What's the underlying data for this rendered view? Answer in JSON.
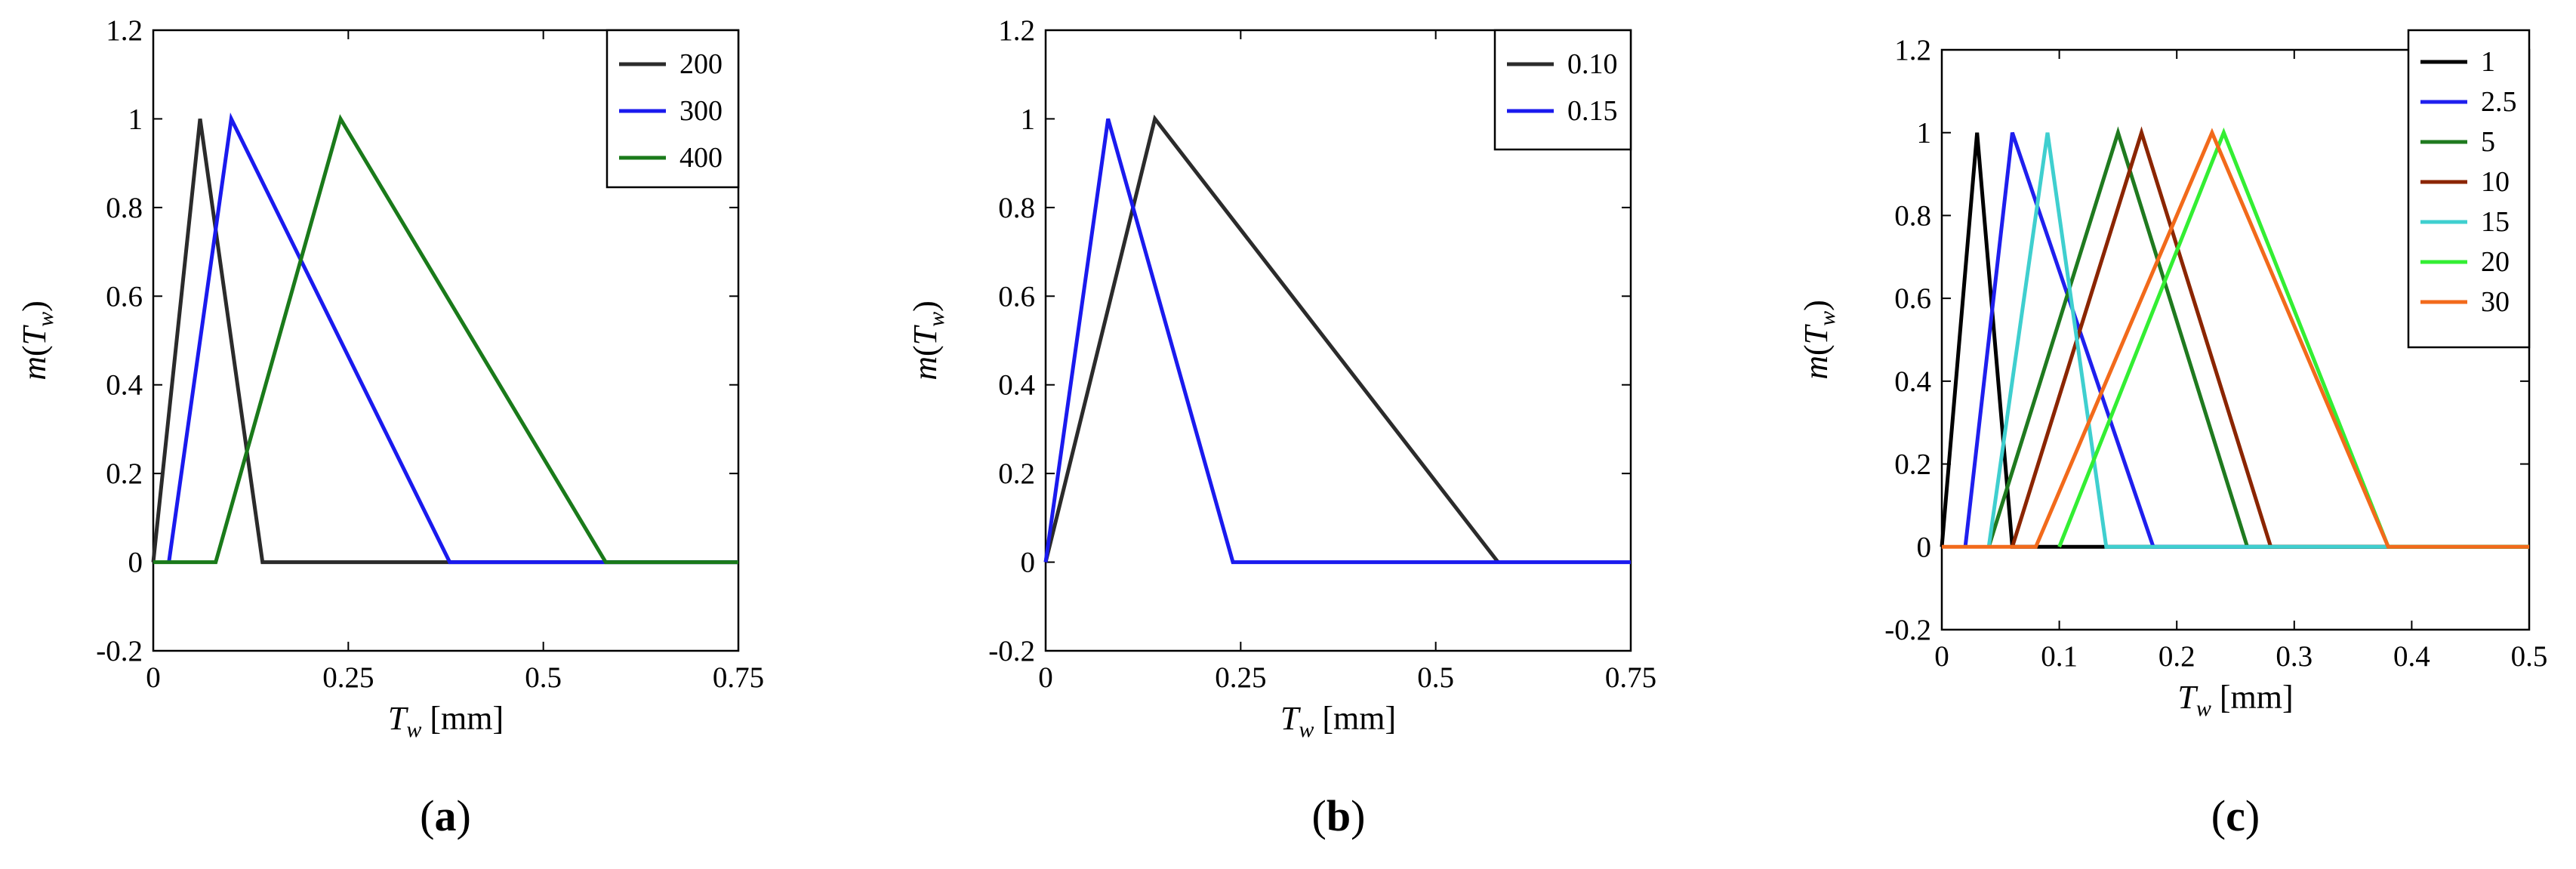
{
  "colors": {
    "black": "#2b2b2b",
    "blue": "#1a1aee",
    "green": "#1a7a1a",
    "pure_black": "#000000",
    "c_blue": "#1f1fee",
    "c_green": "#1f7a1f",
    "c_brown": "#8b2500",
    "c_cyan": "#3fcfcf",
    "c_lime": "#33ee33",
    "c_orange": "#f26a1b"
  },
  "chart_data": [
    {
      "type": "line",
      "panel_label": "a",
      "xlabel": "T_w [mm]",
      "ylabel": "m(T_w)",
      "xlim": [
        0,
        0.75
      ],
      "ylim": [
        -0.2,
        1.2
      ],
      "xticks": [
        0,
        0.25,
        0.5,
        0.75
      ],
      "xtick_labels": [
        "0",
        "0.25",
        "0.5",
        "0.75"
      ],
      "yticks": [
        -0.2,
        0,
        0.2,
        0.4,
        0.6,
        0.8,
        1,
        1.2
      ],
      "ytick_labels": [
        "-0.2",
        "0",
        "0.2",
        "0.4",
        "0.6",
        "0.8",
        "1",
        "1.2"
      ],
      "legend_position": "top-right",
      "grid": false,
      "series": [
        {
          "name": "200",
          "color": "#2b2b2b",
          "x": [
            0,
            0.06,
            0.14,
            0.75
          ],
          "y": [
            0,
            1,
            0,
            0
          ]
        },
        {
          "name": "300",
          "color": "#1a1aee",
          "x": [
            0.02,
            0.1,
            0.38,
            0.75
          ],
          "y": [
            0,
            1,
            0,
            0
          ]
        },
        {
          "name": "400",
          "color": "#1a7a1a",
          "x": [
            0,
            0.08,
            0.24,
            0.58,
            0.75
          ],
          "y": [
            0,
            0,
            1,
            0,
            0
          ]
        }
      ]
    },
    {
      "type": "line",
      "panel_label": "b",
      "xlabel": "T_w [mm]",
      "ylabel": "m(T_w)",
      "xlim": [
        0,
        0.75
      ],
      "ylim": [
        -0.2,
        1.2
      ],
      "xticks": [
        0,
        0.25,
        0.5,
        0.75
      ],
      "xtick_labels": [
        "0",
        "0.25",
        "0.5",
        "0.75"
      ],
      "yticks": [
        -0.2,
        0,
        0.2,
        0.4,
        0.6,
        0.8,
        1,
        1.2
      ],
      "ytick_labels": [
        "-0.2",
        "0",
        "0.2",
        "0.4",
        "0.6",
        "0.8",
        "1",
        "1.2"
      ],
      "legend_position": "top-right",
      "grid": false,
      "series": [
        {
          "name": "0.10",
          "color": "#2b2b2b",
          "x": [
            0,
            0.14,
            0.58
          ],
          "y": [
            0,
            1,
            0
          ]
        },
        {
          "name": "0.15",
          "color": "#1a1aee",
          "x": [
            0,
            0.08,
            0.24,
            0.75
          ],
          "y": [
            0,
            1,
            0,
            0
          ]
        }
      ]
    },
    {
      "type": "line",
      "panel_label": "c",
      "xlabel": "T_w [mm]",
      "ylabel": "m(T_w)",
      "xlim": [
        0,
        0.5
      ],
      "ylim": [
        -0.2,
        1.2
      ],
      "xticks": [
        0,
        0.1,
        0.2,
        0.3,
        0.4,
        0.5
      ],
      "xtick_labels": [
        "0",
        "0.1",
        "0.2",
        "0.3",
        "0.4",
        "0.5"
      ],
      "yticks": [
        -0.2,
        0,
        0.2,
        0.4,
        0.6,
        0.8,
        1,
        1.2
      ],
      "ytick_labels": [
        "-0.2",
        "0",
        "0.2",
        "0.4",
        "0.6",
        "0.8",
        "1",
        "1.2"
      ],
      "legend_position": "top-right",
      "grid": false,
      "series": [
        {
          "name": "1",
          "color": "#000000",
          "x": [
            0,
            0.03,
            0.06,
            0.5
          ],
          "y": [
            0,
            1,
            0,
            0
          ]
        },
        {
          "name": "2.5",
          "color": "#1f1fee",
          "x": [
            0.02,
            0.06,
            0.18,
            0.5
          ],
          "y": [
            0,
            1,
            0,
            0
          ]
        },
        {
          "name": "5",
          "color": "#1f7a1f",
          "x": [
            0.04,
            0.15,
            0.26,
            0.5
          ],
          "y": [
            0,
            1,
            0,
            0
          ]
        },
        {
          "name": "10",
          "color": "#8b2500",
          "x": [
            0.06,
            0.17,
            0.28,
            0.5
          ],
          "y": [
            0,
            1,
            0,
            0
          ]
        },
        {
          "name": "15",
          "color": "#3fcfcf",
          "x": [
            0.04,
            0.09,
            0.14,
            0.5
          ],
          "y": [
            0,
            1,
            0,
            0
          ]
        },
        {
          "name": "20",
          "color": "#33ee33",
          "x": [
            0.1,
            0.24,
            0.38,
            0.5
          ],
          "y": [
            0,
            1,
            0,
            0
          ]
        },
        {
          "name": "30",
          "color": "#f26a1b",
          "x": [
            0,
            0.08,
            0.23,
            0.38,
            0.5
          ],
          "y": [
            0,
            0,
            1,
            0,
            0
          ]
        }
      ]
    }
  ]
}
